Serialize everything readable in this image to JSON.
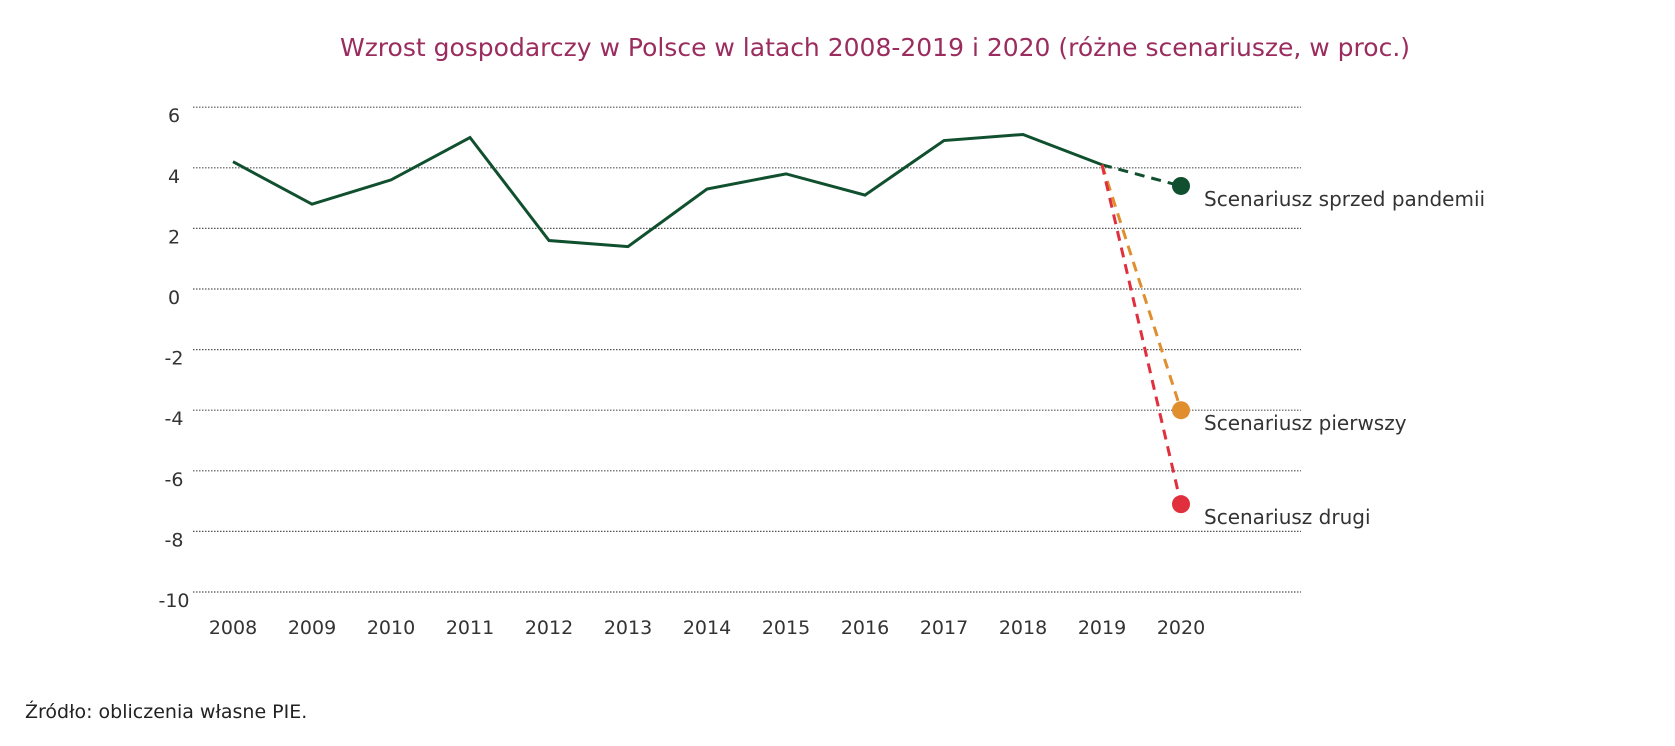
{
  "chart_data": {
    "type": "line",
    "title": "Wzrost gospodarczy w Polsce w latach 2008-2019 i 2020 (różne scenariusze, w proc.)",
    "xlabel": "",
    "ylabel": "",
    "ylim": [
      -10,
      6
    ],
    "yticks": [
      "6",
      "4",
      "2",
      "0",
      "-2",
      "-4",
      "-6",
      "-8",
      "-10"
    ],
    "categories": [
      "2008",
      "2009",
      "2010",
      "2011",
      "2012",
      "2013",
      "2014",
      "2015",
      "2016",
      "2017",
      "2018",
      "2019",
      "2020"
    ],
    "grid": "horizontal dotted",
    "history": {
      "color": "#10502e",
      "x": [
        "2008",
        "2009",
        "2010",
        "2011",
        "2012",
        "2013",
        "2014",
        "2015",
        "2016",
        "2017",
        "2018",
        "2019"
      ],
      "values": [
        4.2,
        2.8,
        3.6,
        5.0,
        1.6,
        1.4,
        3.3,
        3.8,
        3.1,
        4.9,
        5.1,
        4.1
      ]
    },
    "scenarios": [
      {
        "name": "Scenariusz sprzed pandemii",
        "from": 4.1,
        "value": 3.4,
        "color": "#10502e"
      },
      {
        "name": "Scenariusz pierwszy",
        "from": 4.1,
        "value": -4.0,
        "color": "#e08e2e"
      },
      {
        "name": "Scenariusz drugi",
        "from": 4.1,
        "value": -7.1,
        "color": "#e0303e"
      }
    ]
  },
  "source": "Źródło: obliczenia własne PIE."
}
